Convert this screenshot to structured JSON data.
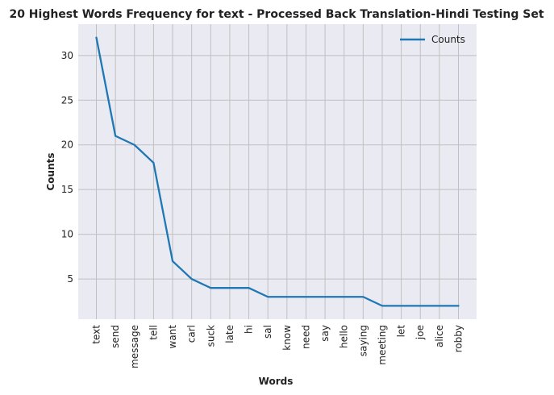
{
  "chart_data": {
    "type": "line",
    "title": "20 Highest Words Frequency for text - Processed Back Translation-Hindi Testing Set",
    "xlabel": "Words",
    "ylabel": "Counts",
    "categories": [
      "text",
      "send",
      "message",
      "tell",
      "want",
      "carl",
      "suck",
      "late",
      "hi",
      "sal",
      "know",
      "need",
      "say",
      "hello",
      "saying",
      "meeting",
      "let",
      "joe",
      "alice",
      "robby"
    ],
    "series": [
      {
        "name": "Counts",
        "values": [
          32,
          21,
          20,
          18,
          7,
          5,
          4,
          4,
          4,
          3,
          3,
          3,
          3,
          3,
          3,
          2,
          2,
          2,
          2,
          2
        ]
      }
    ],
    "ylim": [
      0.5,
      33.5
    ],
    "yticks": [
      5,
      10,
      15,
      20,
      25,
      30
    ],
    "grid": true,
    "legend": "top-right",
    "colors": {
      "line": "#1f77b4",
      "plot_background": "#eaeaf2",
      "grid": "#c0c0c0"
    }
  }
}
